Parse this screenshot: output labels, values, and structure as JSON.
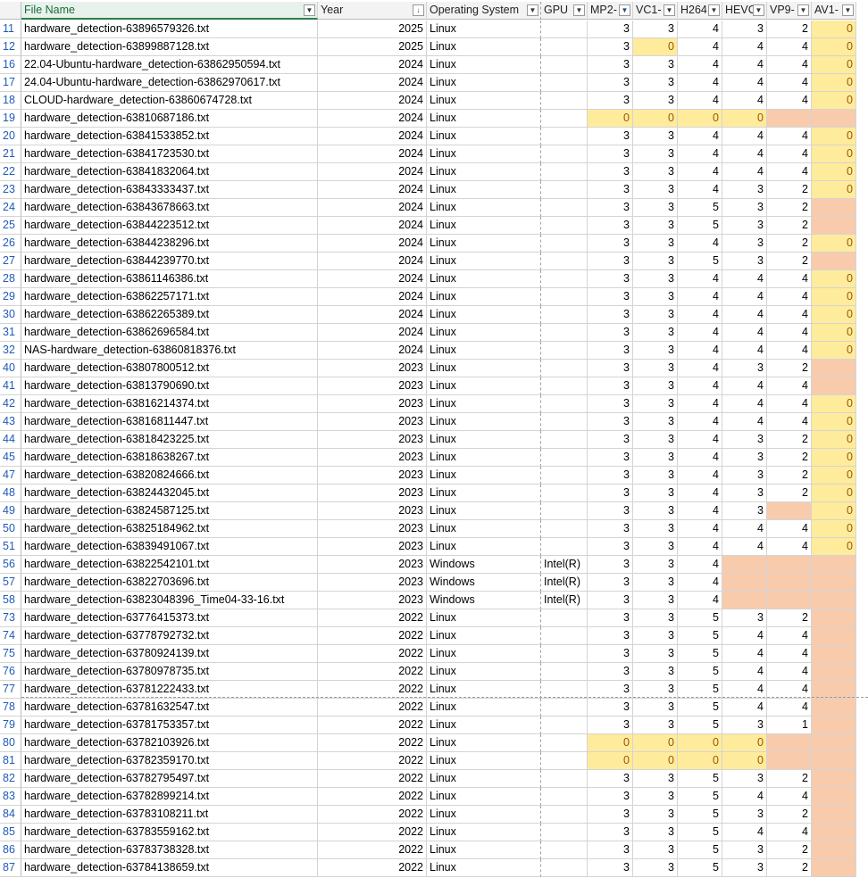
{
  "headers": {
    "file": "File Name",
    "year": "Year",
    "os": "Operating System",
    "gpu": "GPU",
    "mp2": "MP2-",
    "vc1": "VC1-",
    "h264": "H264",
    "hevc": "HEVC",
    "vp9": "VP9-",
    "av1": "AV1-"
  },
  "filter_icons": {
    "dropdown": "filter-dropdown-icon",
    "sort_desc": "sort-descending-filter-icon",
    "filtered": "filter-applied-icon"
  },
  "colors": {
    "yellow_fill": "#ffeb9c",
    "yellow_text": "#9c5700",
    "pink_fill": "#f8cbad",
    "header_accent": "#2f7d4b",
    "row_number": "#1f5bb8"
  },
  "rows": [
    {
      "n": "11",
      "file": "hardware_detection-63896579326.txt",
      "year": "2025",
      "os": "Linux",
      "gpu": "",
      "mp2": "3",
      "vc1": "3",
      "h264": "4",
      "hevc": "3",
      "vp9": "2",
      "av1": "0",
      "hl": {
        "av1": "y"
      }
    },
    {
      "n": "12",
      "file": "hardware_detection-63899887128.txt",
      "year": "2025",
      "os": "Linux",
      "gpu": "",
      "mp2": "3",
      "vc1": "0",
      "h264": "4",
      "hevc": "4",
      "vp9": "4",
      "av1": "0",
      "hl": {
        "vc1": "y",
        "av1": "y"
      }
    },
    {
      "n": "16",
      "file": "22.04-Ubuntu-hardware_detection-63862950594.txt",
      "year": "2024",
      "os": "Linux",
      "gpu": "",
      "mp2": "3",
      "vc1": "3",
      "h264": "4",
      "hevc": "4",
      "vp9": "4",
      "av1": "0",
      "hl": {
        "av1": "y"
      }
    },
    {
      "n": "17",
      "file": "24.04-Ubuntu-hardware_detection-63862970617.txt",
      "year": "2024",
      "os": "Linux",
      "gpu": "",
      "mp2": "3",
      "vc1": "3",
      "h264": "4",
      "hevc": "4",
      "vp9": "4",
      "av1": "0",
      "hl": {
        "av1": "y"
      }
    },
    {
      "n": "18",
      "file": "CLOUD-hardware_detection-63860674728.txt",
      "year": "2024",
      "os": "Linux",
      "gpu": "",
      "mp2": "3",
      "vc1": "3",
      "h264": "4",
      "hevc": "4",
      "vp9": "4",
      "av1": "0",
      "hl": {
        "av1": "y"
      }
    },
    {
      "n": "19",
      "file": "hardware_detection-63810687186.txt",
      "year": "2024",
      "os": "Linux",
      "gpu": "",
      "mp2": "0",
      "vc1": "0",
      "h264": "0",
      "hevc": "0",
      "vp9": "",
      "av1": "",
      "hl": {
        "mp2": "y",
        "vc1": "y",
        "h264": "y",
        "hevc": "y",
        "vp9": "p",
        "av1": "p"
      }
    },
    {
      "n": "20",
      "file": "hardware_detection-63841533852.txt",
      "year": "2024",
      "os": "Linux",
      "gpu": "",
      "mp2": "3",
      "vc1": "3",
      "h264": "4",
      "hevc": "4",
      "vp9": "4",
      "av1": "0",
      "hl": {
        "av1": "y"
      }
    },
    {
      "n": "21",
      "file": "hardware_detection-63841723530.txt",
      "year": "2024",
      "os": "Linux",
      "gpu": "",
      "mp2": "3",
      "vc1": "3",
      "h264": "4",
      "hevc": "4",
      "vp9": "4",
      "av1": "0",
      "hl": {
        "av1": "y"
      }
    },
    {
      "n": "22",
      "file": "hardware_detection-63841832064.txt",
      "year": "2024",
      "os": "Linux",
      "gpu": "",
      "mp2": "3",
      "vc1": "3",
      "h264": "4",
      "hevc": "4",
      "vp9": "4",
      "av1": "0",
      "hl": {
        "av1": "y"
      }
    },
    {
      "n": "23",
      "file": "hardware_detection-63843333437.txt",
      "year": "2024",
      "os": "Linux",
      "gpu": "",
      "mp2": "3",
      "vc1": "3",
      "h264": "4",
      "hevc": "3",
      "vp9": "2",
      "av1": "0",
      "hl": {
        "av1": "y"
      }
    },
    {
      "n": "24",
      "file": "hardware_detection-63843678663.txt",
      "year": "2024",
      "os": "Linux",
      "gpu": "",
      "mp2": "3",
      "vc1": "3",
      "h264": "5",
      "hevc": "3",
      "vp9": "2",
      "av1": "",
      "hl": {
        "av1": "p"
      }
    },
    {
      "n": "25",
      "file": "hardware_detection-63844223512.txt",
      "year": "2024",
      "os": "Linux",
      "gpu": "",
      "mp2": "3",
      "vc1": "3",
      "h264": "5",
      "hevc": "3",
      "vp9": "2",
      "av1": "",
      "hl": {
        "av1": "p"
      }
    },
    {
      "n": "26",
      "file": "hardware_detection-63844238296.txt",
      "year": "2024",
      "os": "Linux",
      "gpu": "",
      "mp2": "3",
      "vc1": "3",
      "h264": "4",
      "hevc": "3",
      "vp9": "2",
      "av1": "0",
      "hl": {
        "av1": "y"
      }
    },
    {
      "n": "27",
      "file": "hardware_detection-63844239770.txt",
      "year": "2024",
      "os": "Linux",
      "gpu": "",
      "mp2": "3",
      "vc1": "3",
      "h264": "5",
      "hevc": "3",
      "vp9": "2",
      "av1": "",
      "hl": {
        "av1": "p"
      }
    },
    {
      "n": "28",
      "file": "hardware_detection-63861146386.txt",
      "year": "2024",
      "os": "Linux",
      "gpu": "",
      "mp2": "3",
      "vc1": "3",
      "h264": "4",
      "hevc": "4",
      "vp9": "4",
      "av1": "0",
      "hl": {
        "av1": "y"
      }
    },
    {
      "n": "29",
      "file": "hardware_detection-63862257171.txt",
      "year": "2024",
      "os": "Linux",
      "gpu": "",
      "mp2": "3",
      "vc1": "3",
      "h264": "4",
      "hevc": "4",
      "vp9": "4",
      "av1": "0",
      "hl": {
        "av1": "y"
      }
    },
    {
      "n": "30",
      "file": "hardware_detection-63862265389.txt",
      "year": "2024",
      "os": "Linux",
      "gpu": "",
      "mp2": "3",
      "vc1": "3",
      "h264": "4",
      "hevc": "4",
      "vp9": "4",
      "av1": "0",
      "hl": {
        "av1": "y"
      }
    },
    {
      "n": "31",
      "file": "hardware_detection-63862696584.txt",
      "year": "2024",
      "os": "Linux",
      "gpu": "",
      "mp2": "3",
      "vc1": "3",
      "h264": "4",
      "hevc": "4",
      "vp9": "4",
      "av1": "0",
      "hl": {
        "av1": "y"
      }
    },
    {
      "n": "32",
      "file": "NAS-hardware_detection-63860818376.txt",
      "year": "2024",
      "os": "Linux",
      "gpu": "",
      "mp2": "3",
      "vc1": "3",
      "h264": "4",
      "hevc": "4",
      "vp9": "4",
      "av1": "0",
      "hl": {
        "av1": "y"
      }
    },
    {
      "n": "40",
      "file": "hardware_detection-63807800512.txt",
      "year": "2023",
      "os": "Linux",
      "gpu": "",
      "mp2": "3",
      "vc1": "3",
      "h264": "4",
      "hevc": "3",
      "vp9": "2",
      "av1": "",
      "hl": {
        "av1": "p"
      }
    },
    {
      "n": "41",
      "file": "hardware_detection-63813790690.txt",
      "year": "2023",
      "os": "Linux",
      "gpu": "",
      "mp2": "3",
      "vc1": "3",
      "h264": "4",
      "hevc": "4",
      "vp9": "4",
      "av1": "",
      "hl": {
        "av1": "p"
      }
    },
    {
      "n": "42",
      "file": "hardware_detection-63816214374.txt",
      "year": "2023",
      "os": "Linux",
      "gpu": "",
      "mp2": "3",
      "vc1": "3",
      "h264": "4",
      "hevc": "4",
      "vp9": "4",
      "av1": "0",
      "hl": {
        "av1": "y"
      }
    },
    {
      "n": "43",
      "file": "hardware_detection-63816811447.txt",
      "year": "2023",
      "os": "Linux",
      "gpu": "",
      "mp2": "3",
      "vc1": "3",
      "h264": "4",
      "hevc": "4",
      "vp9": "4",
      "av1": "0",
      "hl": {
        "av1": "y"
      }
    },
    {
      "n": "44",
      "file": "hardware_detection-63818423225.txt",
      "year": "2023",
      "os": "Linux",
      "gpu": "",
      "mp2": "3",
      "vc1": "3",
      "h264": "4",
      "hevc": "3",
      "vp9": "2",
      "av1": "0",
      "hl": {
        "av1": "y"
      }
    },
    {
      "n": "45",
      "file": "hardware_detection-63818638267.txt",
      "year": "2023",
      "os": "Linux",
      "gpu": "",
      "mp2": "3",
      "vc1": "3",
      "h264": "4",
      "hevc": "3",
      "vp9": "2",
      "av1": "0",
      "hl": {
        "av1": "y"
      }
    },
    {
      "n": "47",
      "file": "hardware_detection-63820824666.txt",
      "year": "2023",
      "os": "Linux",
      "gpu": "",
      "mp2": "3",
      "vc1": "3",
      "h264": "4",
      "hevc": "3",
      "vp9": "2",
      "av1": "0",
      "hl": {
        "av1": "y"
      }
    },
    {
      "n": "48",
      "file": "hardware_detection-63824432045.txt",
      "year": "2023",
      "os": "Linux",
      "gpu": "",
      "mp2": "3",
      "vc1": "3",
      "h264": "4",
      "hevc": "3",
      "vp9": "2",
      "av1": "0",
      "hl": {
        "av1": "y"
      }
    },
    {
      "n": "49",
      "file": "hardware_detection-63824587125.txt",
      "year": "2023",
      "os": "Linux",
      "gpu": "",
      "mp2": "3",
      "vc1": "3",
      "h264": "4",
      "hevc": "3",
      "vp9": "",
      "av1": "0",
      "hl": {
        "vp9": "p",
        "av1": "y"
      }
    },
    {
      "n": "50",
      "file": "hardware_detection-63825184962.txt",
      "year": "2023",
      "os": "Linux",
      "gpu": "",
      "mp2": "3",
      "vc1": "3",
      "h264": "4",
      "hevc": "4",
      "vp9": "4",
      "av1": "0",
      "hl": {
        "av1": "y"
      }
    },
    {
      "n": "51",
      "file": "hardware_detection-63839491067.txt",
      "year": "2023",
      "os": "Linux",
      "gpu": "",
      "mp2": "3",
      "vc1": "3",
      "h264": "4",
      "hevc": "4",
      "vp9": "4",
      "av1": "0",
      "hl": {
        "av1": "y"
      }
    },
    {
      "n": "56",
      "file": "hardware_detection-63822542101.txt",
      "year": "2023",
      "os": "Windows",
      "gpu": "Intel(R)",
      "mp2": "3",
      "vc1": "3",
      "h264": "4",
      "hevc": "",
      "vp9": "",
      "av1": "",
      "hl": {
        "hevc": "p",
        "vp9": "p",
        "av1": "p"
      }
    },
    {
      "n": "57",
      "file": "hardware_detection-63822703696.txt",
      "year": "2023",
      "os": "Windows",
      "gpu": "Intel(R)",
      "mp2": "3",
      "vc1": "3",
      "h264": "4",
      "hevc": "",
      "vp9": "",
      "av1": "",
      "hl": {
        "hevc": "p",
        "vp9": "p",
        "av1": "p"
      }
    },
    {
      "n": "58",
      "file": "hardware_detection-63823048396_Time04-33-16.txt",
      "year": "2023",
      "os": "Windows",
      "gpu": "Intel(R)",
      "mp2": "3",
      "vc1": "3",
      "h264": "4",
      "hevc": "",
      "vp9": "",
      "av1": "",
      "hl": {
        "hevc": "p",
        "vp9": "p",
        "av1": "p"
      }
    },
    {
      "n": "73",
      "file": "hardware_detection-63776415373.txt",
      "year": "2022",
      "os": "Linux",
      "gpu": "",
      "mp2": "3",
      "vc1": "3",
      "h264": "5",
      "hevc": "3",
      "vp9": "2",
      "av1": "",
      "hl": {
        "av1": "p"
      }
    },
    {
      "n": "74",
      "file": "hardware_detection-63778792732.txt",
      "year": "2022",
      "os": "Linux",
      "gpu": "",
      "mp2": "3",
      "vc1": "3",
      "h264": "5",
      "hevc": "4",
      "vp9": "4",
      "av1": "",
      "hl": {
        "av1": "p"
      }
    },
    {
      "n": "75",
      "file": "hardware_detection-63780924139.txt",
      "year": "2022",
      "os": "Linux",
      "gpu": "",
      "mp2": "3",
      "vc1": "3",
      "h264": "5",
      "hevc": "4",
      "vp9": "4",
      "av1": "",
      "hl": {
        "av1": "p"
      }
    },
    {
      "n": "76",
      "file": "hardware_detection-63780978735.txt",
      "year": "2022",
      "os": "Linux",
      "gpu": "",
      "mp2": "3",
      "vc1": "3",
      "h264": "5",
      "hevc": "4",
      "vp9": "4",
      "av1": "",
      "hl": {
        "av1": "p"
      }
    },
    {
      "n": "77",
      "file": "hardware_detection-63781222433.txt",
      "year": "2022",
      "os": "Linux",
      "gpu": "",
      "mp2": "3",
      "vc1": "3",
      "h264": "5",
      "hevc": "4",
      "vp9": "4",
      "av1": "",
      "hl": {
        "av1": "p"
      }
    },
    {
      "n": "78",
      "file": "hardware_detection-63781632547.txt",
      "year": "2022",
      "os": "Linux",
      "gpu": "",
      "mp2": "3",
      "vc1": "3",
      "h264": "5",
      "hevc": "4",
      "vp9": "4",
      "av1": "",
      "hl": {
        "av1": "p"
      }
    },
    {
      "n": "79",
      "file": "hardware_detection-63781753357.txt",
      "year": "2022",
      "os": "Linux",
      "gpu": "",
      "mp2": "3",
      "vc1": "3",
      "h264": "5",
      "hevc": "3",
      "vp9": "1",
      "av1": "",
      "hl": {
        "av1": "p"
      }
    },
    {
      "n": "80",
      "file": "hardware_detection-63782103926.txt",
      "year": "2022",
      "os": "Linux",
      "gpu": "",
      "mp2": "0",
      "vc1": "0",
      "h264": "0",
      "hevc": "0",
      "vp9": "",
      "av1": "",
      "hl": {
        "mp2": "y",
        "vc1": "y",
        "h264": "y",
        "hevc": "y",
        "vp9": "p",
        "av1": "p"
      }
    },
    {
      "n": "81",
      "file": "hardware_detection-63782359170.txt",
      "year": "2022",
      "os": "Linux",
      "gpu": "",
      "mp2": "0",
      "vc1": "0",
      "h264": "0",
      "hevc": "0",
      "vp9": "",
      "av1": "",
      "hl": {
        "mp2": "y",
        "vc1": "y",
        "h264": "y",
        "hevc": "y",
        "vp9": "p",
        "av1": "p"
      }
    },
    {
      "n": "82",
      "file": "hardware_detection-63782795497.txt",
      "year": "2022",
      "os": "Linux",
      "gpu": "",
      "mp2": "3",
      "vc1": "3",
      "h264": "5",
      "hevc": "3",
      "vp9": "2",
      "av1": "",
      "hl": {
        "av1": "p"
      }
    },
    {
      "n": "83",
      "file": "hardware_detection-63782899214.txt",
      "year": "2022",
      "os": "Linux",
      "gpu": "",
      "mp2": "3",
      "vc1": "3",
      "h264": "5",
      "hevc": "4",
      "vp9": "4",
      "av1": "",
      "hl": {
        "av1": "p"
      }
    },
    {
      "n": "84",
      "file": "hardware_detection-63783108211.txt",
      "year": "2022",
      "os": "Linux",
      "gpu": "",
      "mp2": "3",
      "vc1": "3",
      "h264": "5",
      "hevc": "3",
      "vp9": "2",
      "av1": "",
      "hl": {
        "av1": "p"
      }
    },
    {
      "n": "85",
      "file": "hardware_detection-63783559162.txt",
      "year": "2022",
      "os": "Linux",
      "gpu": "",
      "mp2": "3",
      "vc1": "3",
      "h264": "5",
      "hevc": "4",
      "vp9": "4",
      "av1": "",
      "hl": {
        "av1": "p"
      }
    },
    {
      "n": "86",
      "file": "hardware_detection-63783738328.txt",
      "year": "2022",
      "os": "Linux",
      "gpu": "",
      "mp2": "3",
      "vc1": "3",
      "h264": "5",
      "hevc": "3",
      "vp9": "2",
      "av1": "",
      "hl": {
        "av1": "p"
      }
    },
    {
      "n": "87",
      "file": "hardware_detection-63784138659.txt",
      "year": "2022",
      "os": "Linux",
      "gpu": "",
      "mp2": "3",
      "vc1": "3",
      "h264": "5",
      "hevc": "3",
      "vp9": "2",
      "av1": "",
      "hl": {
        "av1": "p"
      }
    }
  ]
}
